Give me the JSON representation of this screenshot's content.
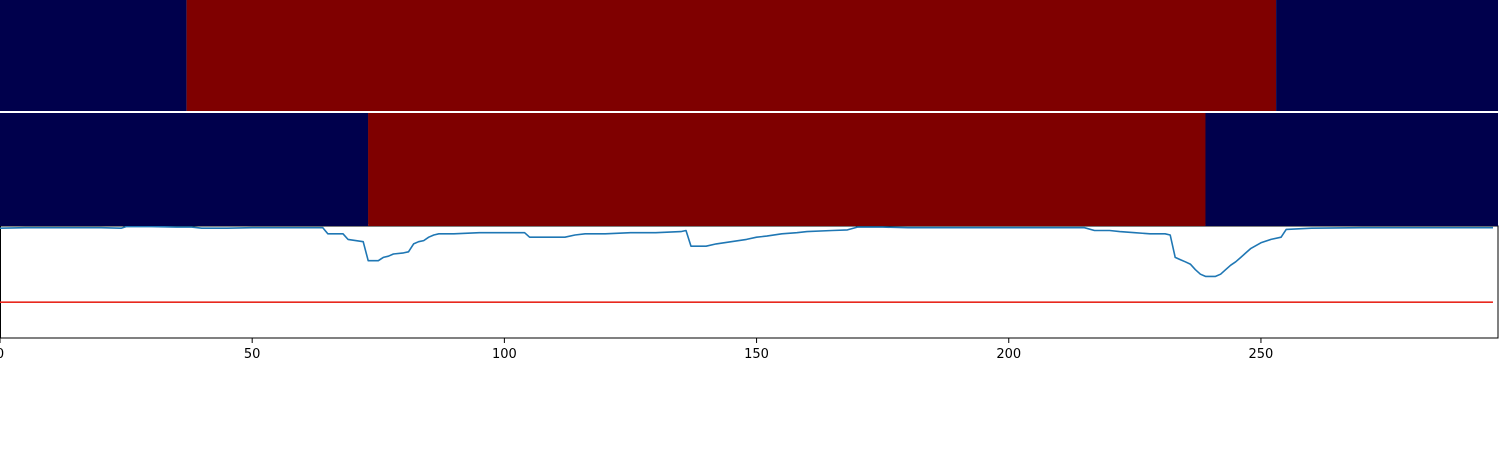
{
  "chart_data": {
    "type": "heatmap",
    "title": "",
    "xlabel": "",
    "ylabel": "",
    "xlim": [
      0,
      297
    ],
    "x_ticks": [
      "0",
      "50",
      "100",
      "150",
      "200",
      "250"
    ],
    "x_tick_values": [
      0,
      50,
      100,
      150,
      200,
      250
    ],
    "grid": false,
    "colors": {
      "state_low": "#00004c",
      "state_high": "#7f0000",
      "signal": "#1f77b4",
      "threshold": "#e8281e",
      "axis": "#000000"
    },
    "tracks": [
      {
        "segments": [
          {
            "start": 0,
            "end": 37,
            "state": "low"
          },
          {
            "start": 37,
            "end": 253,
            "state": "high"
          },
          {
            "start": 253,
            "end": 297,
            "state": "low"
          }
        ]
      },
      {
        "segments": [
          {
            "start": 0,
            "end": 73,
            "state": "low"
          },
          {
            "start": 73,
            "end": 239,
            "state": "high"
          },
          {
            "start": 239,
            "end": 297,
            "state": "low"
          }
        ]
      }
    ],
    "signal": {
      "ylim": [
        0,
        1
      ],
      "threshold": 0.32,
      "x": [
        0,
        5,
        10,
        15,
        20,
        24,
        25,
        30,
        35,
        38,
        40,
        45,
        50,
        55,
        60,
        64,
        65,
        68,
        69,
        72,
        73,
        75,
        76,
        77,
        78,
        80,
        81,
        82,
        83,
        84,
        85,
        86,
        87,
        88,
        89,
        90,
        95,
        100,
        104,
        105,
        110,
        112,
        114,
        116,
        120,
        125,
        130,
        135,
        136,
        137,
        140,
        142,
        145,
        148,
        150,
        152,
        155,
        158,
        160,
        165,
        168,
        170,
        175,
        180,
        190,
        200,
        210,
        215,
        217,
        220,
        222,
        225,
        228,
        231,
        232,
        233,
        234,
        235,
        236,
        237,
        238,
        239,
        240,
        241,
        242,
        243,
        244,
        245,
        246,
        247,
        248,
        250,
        252,
        254,
        255,
        260,
        270,
        280,
        290,
        296
      ],
      "y": [
        0.98,
        0.985,
        0.985,
        0.985,
        0.985,
        0.98,
        0.995,
        0.995,
        0.99,
        0.99,
        0.98,
        0.98,
        0.985,
        0.985,
        0.985,
        0.985,
        0.93,
        0.93,
        0.88,
        0.86,
        0.69,
        0.69,
        0.72,
        0.73,
        0.75,
        0.76,
        0.77,
        0.84,
        0.86,
        0.87,
        0.9,
        0.92,
        0.93,
        0.93,
        0.93,
        0.93,
        0.94,
        0.94,
        0.94,
        0.9,
        0.9,
        0.9,
        0.92,
        0.93,
        0.93,
        0.94,
        0.94,
        0.95,
        0.96,
        0.82,
        0.82,
        0.84,
        0.86,
        0.88,
        0.9,
        0.91,
        0.93,
        0.94,
        0.95,
        0.96,
        0.965,
        0.99,
        0.99,
        0.985,
        0.985,
        0.985,
        0.985,
        0.985,
        0.96,
        0.96,
        0.95,
        0.94,
        0.93,
        0.93,
        0.92,
        0.72,
        0.7,
        0.68,
        0.66,
        0.61,
        0.57,
        0.55,
        0.55,
        0.55,
        0.57,
        0.61,
        0.65,
        0.68,
        0.72,
        0.76,
        0.8,
        0.85,
        0.88,
        0.9,
        0.97,
        0.98,
        0.985,
        0.985,
        0.985,
        0.985
      ]
    }
  }
}
